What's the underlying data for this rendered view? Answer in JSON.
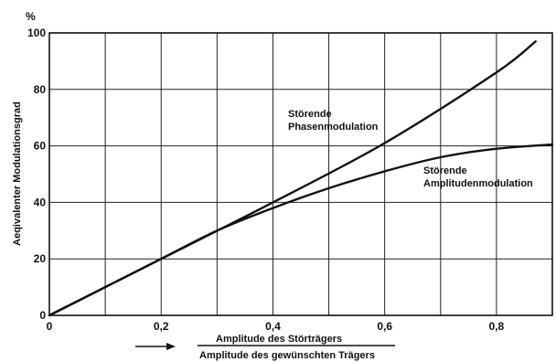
{
  "chart_data": {
    "type": "line",
    "title": "",
    "y_unit": "%",
    "ylabel": "Aeqivalenter Modulationsgrad",
    "xlabel_numerator": "Amplitude des Störträgers",
    "xlabel_denominator": "Amplitude des gewünschten Trägers",
    "xlim": [
      0,
      0.9
    ],
    "ylim": [
      0,
      100
    ],
    "x_ticks": [
      0,
      0.2,
      0.4,
      0.6,
      0.8
    ],
    "x_tick_labels": [
      "0",
      "0,2",
      "0,4",
      "0,6",
      "0,8"
    ],
    "y_ticks": [
      0,
      20,
      40,
      60,
      80,
      100
    ],
    "y_tick_labels": [
      "0",
      "20",
      "40",
      "60",
      "80",
      "100"
    ],
    "grid": true,
    "legend": "none",
    "series": [
      {
        "label_line1": "Störende",
        "label_line2": "Phasenmodulation",
        "x": [
          0,
          0.2,
          0.4,
          0.6,
          0.8,
          0.87
        ],
        "values": [
          0,
          20,
          40,
          61,
          86,
          97
        ]
      },
      {
        "label_line1": "Störende",
        "label_line2": "Amplitudenmodulation",
        "x": [
          0,
          0.1,
          0.2,
          0.3,
          0.4,
          0.5,
          0.6,
          0.7,
          0.8,
          0.9
        ],
        "values": [
          0,
          10,
          20,
          30,
          38,
          45,
          51,
          56,
          59,
          60.5
        ]
      }
    ]
  }
}
